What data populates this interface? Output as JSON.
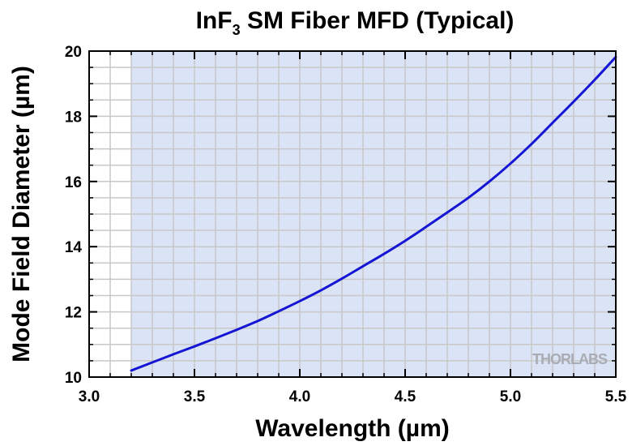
{
  "chart_data": {
    "type": "line",
    "title_main": "InF",
    "title_sub": "3",
    "title_rest": " SM Fiber MFD (Typical)",
    "xlabel": "Wavelength (µm)",
    "ylabel": "Mode Field Diameter (µm)",
    "xlim": [
      3.0,
      5.5
    ],
    "ylim": [
      10,
      20
    ],
    "x_ticks": [
      3.0,
      3.5,
      4.0,
      4.5,
      5.0,
      5.5
    ],
    "x_tick_labels": [
      "3.0",
      "3.5",
      "4.0",
      "4.5",
      "5.0",
      "5.5"
    ],
    "y_ticks": [
      10,
      12,
      14,
      16,
      18,
      20
    ],
    "y_tick_labels": [
      "10",
      "12",
      "14",
      "16",
      "18",
      "20"
    ],
    "x_minor_step": 0.1,
    "y_minor_step": 0.5,
    "grid": true,
    "shaded_region": {
      "x_start": 3.2,
      "x_end": 5.5,
      "color": "#dbe3f6"
    },
    "series": [
      {
        "color": "#1515d4",
        "x": [
          3.2,
          3.3,
          3.4,
          3.5,
          3.6,
          3.7,
          3.8,
          3.9,
          4.0,
          4.1,
          4.2,
          4.3,
          4.4,
          4.5,
          4.6,
          4.7,
          4.8,
          4.9,
          5.0,
          5.1,
          5.2,
          5.3,
          5.4,
          5.5
        ],
        "y": [
          10.2,
          10.45,
          10.7,
          10.94,
          11.19,
          11.45,
          11.72,
          12.02,
          12.33,
          12.66,
          13.02,
          13.4,
          13.78,
          14.18,
          14.61,
          15.05,
          15.5,
          16.0,
          16.55,
          17.15,
          17.8,
          18.45,
          19.12,
          19.82
        ]
      }
    ],
    "watermark": "THORLABS"
  }
}
